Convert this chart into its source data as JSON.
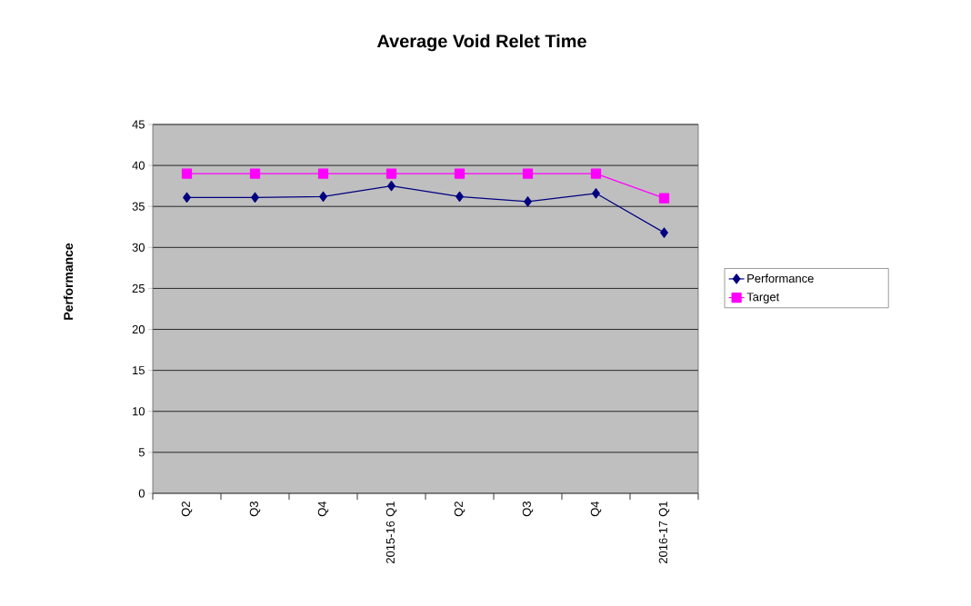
{
  "chart_data": {
    "type": "line",
    "title": "Average Void Relet Time",
    "ylabel": "Performance",
    "categories": [
      "Q2",
      "Q3",
      "Q4",
      "2015-16 Q1",
      "Q2",
      "Q3",
      "Q4",
      "2016-17 Q1"
    ],
    "series": [
      {
        "name": "Performance",
        "color": "#000080",
        "marker": "diamond",
        "values": [
          36.1,
          36.1,
          36.2,
          37.5,
          36.2,
          35.6,
          36.6,
          31.8
        ]
      },
      {
        "name": "Target",
        "color": "#ff00ff",
        "marker": "square",
        "values": [
          39,
          39,
          39,
          39,
          39,
          39,
          39,
          36
        ]
      }
    ],
    "ylim": [
      0,
      45
    ],
    "yticks": [
      0,
      5,
      10,
      15,
      20,
      25,
      30,
      35,
      40,
      45
    ],
    "grid": "y",
    "legend": "right",
    "line_style": "solid"
  }
}
